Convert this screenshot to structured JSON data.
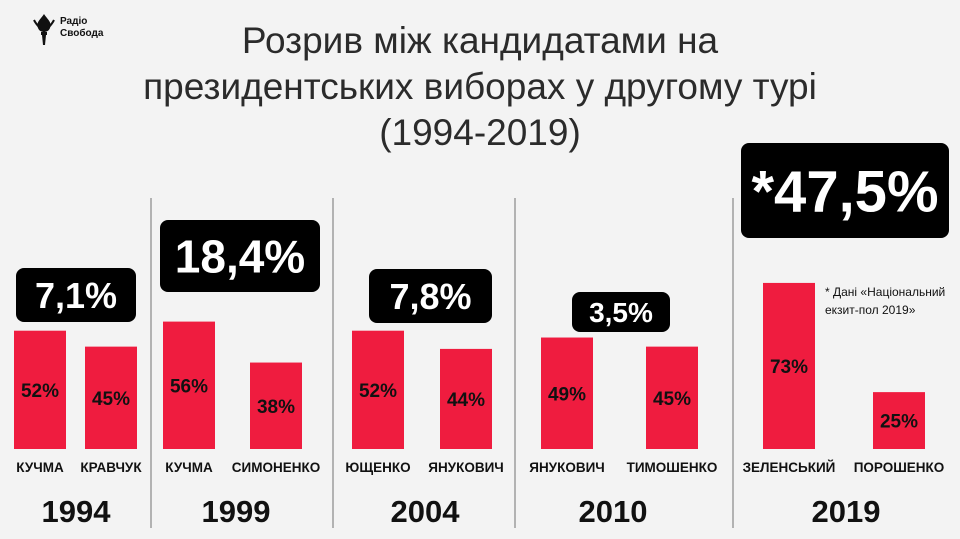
{
  "brand": {
    "line1": "Радіо",
    "line2": "Свобода",
    "icon": "torch-icon"
  },
  "title_lines": [
    "Розрив між кандидатами на",
    "президентських виборах у другому турі",
    "(1994-2019)"
  ],
  "colors": {
    "bar": "#ef1c3f",
    "badge_bg": "#000000",
    "badge_text": "#ffffff",
    "text": "#111111",
    "divider": "#888888",
    "background": "#f3f3f3"
  },
  "footnote_lines": [
    "* Дані «Національний",
    "екзит-пол 2019»"
  ],
  "chart_data": {
    "type": "bar",
    "groups": [
      {
        "year": "1994",
        "gap": "7,1%",
        "candidates": [
          {
            "name": "КУЧМА",
            "value": 52,
            "label": "52%"
          },
          {
            "name": "КРАВЧУК",
            "value": 45,
            "label": "45%"
          }
        ]
      },
      {
        "year": "1999",
        "gap": "18,4%",
        "candidates": [
          {
            "name": "КУЧМА",
            "value": 56,
            "label": "56%"
          },
          {
            "name": "СИМОНЕНКО",
            "value": 38,
            "label": "38%"
          }
        ]
      },
      {
        "year": "2004",
        "gap": "7,8%",
        "candidates": [
          {
            "name": "ЮЩЕНКО",
            "value": 52,
            "label": "52%"
          },
          {
            "name": "ЯНУКОВИЧ",
            "value": 44,
            "label": "44%"
          }
        ]
      },
      {
        "year": "2010",
        "gap": "3,5%",
        "candidates": [
          {
            "name": "ЯНУКОВИЧ",
            "value": 49,
            "label": "49%"
          },
          {
            "name": "ТИМОШЕНКО",
            "value": 45,
            "label": "45%"
          }
        ]
      },
      {
        "year": "2019",
        "gap": "*47,5%",
        "candidates": [
          {
            "name": "ЗЕЛЕНСЬКИЙ",
            "value": 73,
            "label": "73%"
          },
          {
            "name": "ПОРОШЕНКО",
            "value": 25,
            "label": "25%"
          }
        ]
      }
    ]
  }
}
